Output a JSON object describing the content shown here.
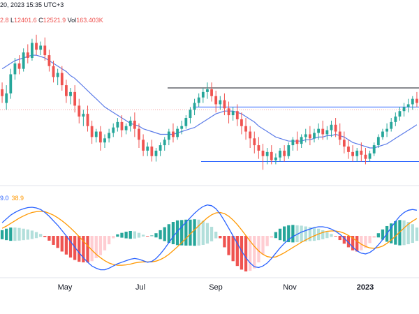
{
  "header": {
    "datetime": "20, 2023 15:35 UTC+3",
    "ohlc": [
      {
        "label": "",
        "value": "2.8"
      },
      {
        "label": "L",
        "value": "12401.6"
      },
      {
        "label": "C",
        "value": "12521.9"
      },
      {
        "label": "Vol",
        "value": "163.403K"
      }
    ]
  },
  "indicator": {
    "macd_value": "9.0",
    "signal_value": "38.9"
  },
  "colors": {
    "up": "#26a69a",
    "down": "#ef5350",
    "ma": "#5b7be8",
    "macd": "#2962ff",
    "signal": "#ff9800",
    "hist_up": "#26a69a",
    "hist_up_light": "#b2dfdb",
    "hist_down": "#ef5350",
    "hist_down_light": "#ffcdd2",
    "trendline_dark": "#131722",
    "trendline_blue": "#2962ff",
    "price_line": "#f7a1a1"
  },
  "chart_data": [
    {
      "type": "candlestick",
      "title": "",
      "x_ticks": [
        "May",
        "Jul",
        "Sep",
        "Nov",
        "2023"
      ],
      "bold_ticks": [
        "2023"
      ],
      "candles": [
        [
          1.15,
          1.2,
          1.1,
          1.05
        ],
        [
          1.05,
          1.18,
          1.12,
          1.0
        ],
        [
          1.12,
          1.3,
          1.26,
          1.08
        ],
        [
          1.26,
          1.38,
          1.34,
          1.22
        ],
        [
          1.34,
          1.4,
          1.3,
          1.26
        ],
        [
          1.3,
          1.45,
          1.42,
          1.28
        ],
        [
          1.42,
          1.48,
          1.38,
          1.34
        ],
        [
          1.38,
          1.52,
          1.49,
          1.36
        ],
        [
          1.49,
          1.55,
          1.44,
          1.4
        ],
        [
          1.44,
          1.5,
          1.47,
          1.4
        ],
        [
          1.47,
          1.53,
          1.4,
          1.36
        ],
        [
          1.4,
          1.44,
          1.32,
          1.28
        ],
        [
          1.32,
          1.36,
          1.24,
          1.2
        ],
        [
          1.24,
          1.3,
          1.27,
          1.18
        ],
        [
          1.27,
          1.32,
          1.18,
          1.14
        ],
        [
          1.18,
          1.22,
          1.1,
          1.05
        ],
        [
          1.1,
          1.16,
          1.13,
          1.04
        ],
        [
          1.13,
          1.18,
          1.03,
          0.98
        ],
        [
          1.03,
          1.08,
          0.95,
          0.9
        ],
        [
          0.95,
          1.0,
          0.97,
          0.88
        ],
        [
          0.97,
          1.03,
          0.88,
          0.84
        ],
        [
          0.88,
          0.92,
          0.8,
          0.75
        ],
        [
          0.8,
          0.86,
          0.84,
          0.76
        ],
        [
          0.84,
          0.88,
          0.76,
          0.7
        ],
        [
          0.76,
          0.82,
          0.79,
          0.72
        ],
        [
          0.79,
          0.86,
          0.83,
          0.76
        ],
        [
          0.83,
          0.9,
          0.87,
          0.8
        ],
        [
          0.87,
          0.94,
          0.91,
          0.84
        ],
        [
          0.91,
          0.96,
          0.85,
          0.8
        ],
        [
          0.85,
          0.9,
          0.88,
          0.82
        ],
        [
          0.88,
          0.95,
          0.92,
          0.84
        ],
        [
          0.92,
          0.98,
          0.86,
          0.8
        ],
        [
          0.86,
          0.9,
          0.78,
          0.72
        ],
        [
          0.78,
          0.82,
          0.7,
          0.66
        ],
        [
          0.7,
          0.76,
          0.73,
          0.66
        ],
        [
          0.73,
          0.78,
          0.66,
          0.62
        ],
        [
          0.66,
          0.72,
          0.7,
          0.62
        ],
        [
          0.7,
          0.76,
          0.74,
          0.66
        ],
        [
          0.74,
          0.8,
          0.78,
          0.7
        ],
        [
          0.78,
          0.86,
          0.84,
          0.74
        ],
        [
          0.84,
          0.9,
          0.8,
          0.76
        ],
        [
          0.8,
          0.88,
          0.86,
          0.78
        ],
        [
          0.86,
          0.92,
          0.88,
          0.82
        ],
        [
          0.88,
          0.96,
          0.94,
          0.86
        ],
        [
          0.94,
          1.02,
          1.0,
          0.9
        ],
        [
          1.0,
          1.08,
          1.05,
          0.96
        ],
        [
          1.05,
          1.12,
          1.09,
          1.02
        ],
        [
          1.09,
          1.16,
          1.13,
          1.05
        ],
        [
          1.13,
          1.2,
          1.15,
          1.08
        ],
        [
          1.15,
          1.2,
          1.1,
          1.06
        ],
        [
          1.1,
          1.14,
          1.04,
          0.98
        ],
        [
          1.04,
          1.1,
          1.07,
          1.0
        ],
        [
          1.07,
          1.12,
          1.01,
          0.96
        ],
        [
          1.01,
          1.06,
          0.96,
          0.9
        ],
        [
          0.96,
          1.02,
          0.99,
          0.92
        ],
        [
          0.99,
          1.04,
          0.93,
          0.88
        ],
        [
          0.93,
          0.98,
          0.88,
          0.82
        ],
        [
          0.88,
          0.94,
          0.84,
          0.78
        ],
        [
          0.84,
          0.88,
          0.79,
          0.72
        ],
        [
          0.79,
          0.84,
          0.74,
          0.68
        ],
        [
          0.74,
          0.8,
          0.7,
          0.64
        ],
        [
          0.7,
          0.75,
          0.66,
          0.56
        ],
        [
          0.66,
          0.72,
          0.69,
          0.6
        ],
        [
          0.69,
          0.74,
          0.63,
          0.6
        ],
        [
          0.63,
          0.68,
          0.65,
          0.6
        ],
        [
          0.65,
          0.72,
          0.7,
          0.62
        ],
        [
          0.7,
          0.74,
          0.66,
          0.62
        ],
        [
          0.66,
          0.76,
          0.74,
          0.64
        ],
        [
          0.74,
          0.8,
          0.78,
          0.7
        ],
        [
          0.78,
          0.84,
          0.75,
          0.7
        ],
        [
          0.75,
          0.82,
          0.8,
          0.72
        ],
        [
          0.8,
          0.86,
          0.82,
          0.76
        ],
        [
          0.82,
          0.88,
          0.79,
          0.74
        ],
        [
          0.79,
          0.86,
          0.83,
          0.76
        ],
        [
          0.83,
          0.9,
          0.86,
          0.78
        ],
        [
          0.86,
          0.92,
          0.82,
          0.78
        ],
        [
          0.82,
          0.88,
          0.85,
          0.78
        ],
        [
          0.85,
          0.92,
          0.89,
          0.8
        ],
        [
          0.89,
          0.94,
          0.84,
          0.8
        ],
        [
          0.84,
          0.9,
          0.78,
          0.74
        ],
        [
          0.78,
          0.84,
          0.73,
          0.68
        ],
        [
          0.73,
          0.78,
          0.69,
          0.64
        ],
        [
          0.69,
          0.74,
          0.66,
          0.62
        ],
        [
          0.66,
          0.72,
          0.7,
          0.62
        ],
        [
          0.7,
          0.76,
          0.67,
          0.62
        ],
        [
          0.67,
          0.72,
          0.64,
          0.6
        ],
        [
          0.64,
          0.7,
          0.68,
          0.62
        ],
        [
          0.68,
          0.76,
          0.74,
          0.66
        ],
        [
          0.74,
          0.82,
          0.8,
          0.72
        ],
        [
          0.8,
          0.86,
          0.84,
          0.78
        ],
        [
          0.84,
          0.9,
          0.86,
          0.8
        ],
        [
          0.86,
          0.94,
          0.91,
          0.84
        ],
        [
          0.91,
          0.98,
          0.95,
          0.88
        ],
        [
          0.95,
          1.02,
          0.99,
          0.92
        ],
        [
          0.99,
          1.05,
          1.02,
          0.95
        ],
        [
          1.02,
          1.08,
          1.04,
          0.98
        ],
        [
          1.04,
          1.1,
          1.08,
          1.0
        ],
        [
          1.08,
          1.13,
          1.05,
          1.02
        ]
      ],
      "ma": [
        1.3,
        1.32,
        1.34,
        1.36,
        1.37,
        1.38,
        1.39,
        1.4,
        1.4,
        1.39,
        1.38,
        1.36,
        1.34,
        1.32,
        1.3,
        1.28,
        1.25,
        1.23,
        1.2,
        1.17,
        1.14,
        1.11,
        1.08,
        1.05,
        1.02,
        1.0,
        0.98,
        0.96,
        0.94,
        0.92,
        0.9,
        0.89,
        0.88,
        0.86,
        0.85,
        0.84,
        0.83,
        0.82,
        0.82,
        0.82,
        0.82,
        0.83,
        0.84,
        0.85,
        0.86,
        0.87,
        0.89,
        0.91,
        0.93,
        0.95,
        0.97,
        0.98,
        0.99,
        0.99,
        0.99,
        0.98,
        0.97,
        0.95,
        0.93,
        0.91,
        0.88,
        0.86,
        0.84,
        0.82,
        0.8,
        0.79,
        0.78,
        0.77,
        0.77,
        0.77,
        0.77,
        0.78,
        0.78,
        0.79,
        0.8,
        0.8,
        0.81,
        0.81,
        0.82,
        0.81,
        0.8,
        0.78,
        0.76,
        0.75,
        0.74,
        0.73,
        0.72,
        0.72,
        0.73,
        0.74,
        0.75,
        0.77,
        0.79,
        0.81,
        0.83,
        0.85,
        0.87,
        0.89
      ],
      "hlines": [
        {
          "y": 1.16,
          "x_start": 0.4,
          "x_end": 1.0,
          "color": "dark"
        },
        {
          "y": 1.02,
          "x_start": 0.46,
          "x_end": 1.0,
          "color": "blue"
        },
        {
          "y": 0.62,
          "x_start": 0.48,
          "x_end": 1.0,
          "color": "blue"
        },
        {
          "y": 1.0,
          "x_start": 0.0,
          "x_end": 1.0,
          "color": "price"
        }
      ],
      "ylim": [
        0.5,
        1.6
      ]
    },
    {
      "type": "macd",
      "title": "",
      "macd": [
        0.35,
        0.45,
        0.55,
        0.62,
        0.68,
        0.72,
        0.75,
        0.76,
        0.74,
        0.7,
        0.62,
        0.52,
        0.4,
        0.28,
        0.14,
        0.0,
        -0.15,
        -0.3,
        -0.45,
        -0.58,
        -0.7,
        -0.8,
        -0.86,
        -0.9,
        -0.9,
        -0.86,
        -0.8,
        -0.74,
        -0.7,
        -0.66,
        -0.62,
        -0.6,
        -0.62,
        -0.66,
        -0.7,
        -0.68,
        -0.6,
        -0.48,
        -0.34,
        -0.18,
        -0.02,
        0.12,
        0.24,
        0.36,
        0.48,
        0.6,
        0.7,
        0.78,
        0.82,
        0.8,
        0.72,
        0.58,
        0.4,
        0.2,
        0.0,
        -0.2,
        -0.4,
        -0.58,
        -0.72,
        -0.82,
        -0.84,
        -0.8,
        -0.72,
        -0.6,
        -0.46,
        -0.32,
        -0.2,
        -0.1,
        -0.02,
        0.04,
        0.1,
        0.14,
        0.18,
        0.22,
        0.24,
        0.24,
        0.22,
        0.18,
        0.12,
        0.04,
        -0.06,
        -0.18,
        -0.3,
        -0.4,
        -0.46,
        -0.48,
        -0.44,
        -0.36,
        -0.24,
        -0.1,
        0.06,
        0.22,
        0.38,
        0.52,
        0.62,
        0.68,
        0.7,
        0.68
      ],
      "signal": [
        0.2,
        0.26,
        0.33,
        0.4,
        0.47,
        0.53,
        0.58,
        0.62,
        0.64,
        0.65,
        0.64,
        0.6,
        0.55,
        0.48,
        0.4,
        0.31,
        0.21,
        0.1,
        -0.02,
        -0.14,
        -0.26,
        -0.38,
        -0.49,
        -0.58,
        -0.66,
        -0.72,
        -0.76,
        -0.78,
        -0.78,
        -0.77,
        -0.75,
        -0.72,
        -0.7,
        -0.69,
        -0.69,
        -0.69,
        -0.67,
        -0.63,
        -0.57,
        -0.49,
        -0.39,
        -0.29,
        -0.18,
        -0.07,
        0.05,
        0.16,
        0.27,
        0.38,
        0.48,
        0.56,
        0.61,
        0.62,
        0.59,
        0.52,
        0.42,
        0.3,
        0.16,
        0.01,
        -0.14,
        -0.28,
        -0.4,
        -0.49,
        -0.55,
        -0.57,
        -0.56,
        -0.51,
        -0.45,
        -0.38,
        -0.31,
        -0.24,
        -0.17,
        -0.11,
        -0.05,
        0.0,
        0.05,
        0.09,
        0.12,
        0.13,
        0.13,
        0.11,
        0.07,
        0.01,
        -0.06,
        -0.14,
        -0.22,
        -0.28,
        -0.32,
        -0.33,
        -0.31,
        -0.27,
        -0.2,
        -0.11,
        -0.01,
        0.1,
        0.21,
        0.31,
        0.39,
        0.46
      ],
      "ylim": [
        -1.0,
        1.0
      ]
    }
  ]
}
